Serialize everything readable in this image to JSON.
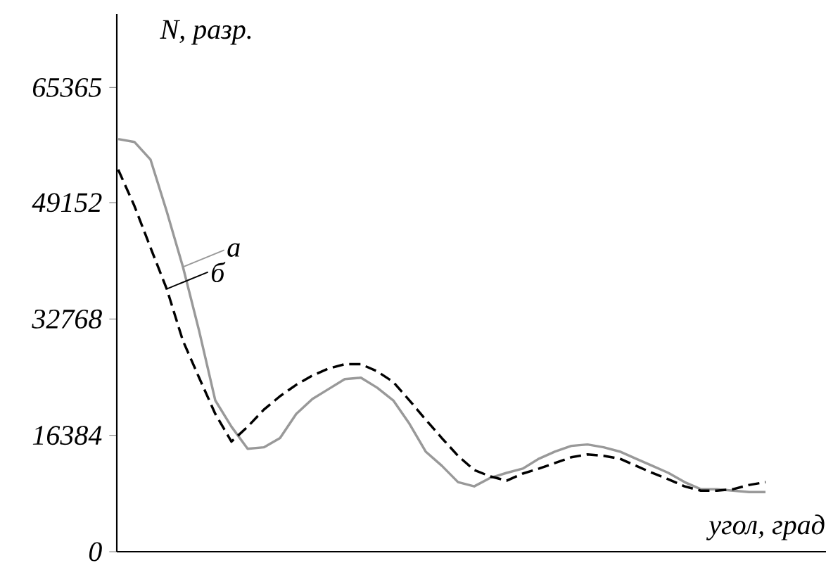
{
  "chart_data": {
    "type": "line",
    "xlabel": "угол, град",
    "ylabel": "N, разр.",
    "categories": [
      null,
      null,
      null,
      null,
      null,
      null,
      null,
      null,
      null,
      null,
      null,
      null,
      null,
      null,
      null,
      null,
      null,
      null,
      null,
      null,
      null,
      null,
      null,
      null,
      null,
      null,
      null,
      null,
      null,
      null,
      null,
      null,
      null,
      null,
      null,
      null,
      null,
      null,
      null,
      null,
      null
    ],
    "legend": "left",
    "ylim": [
      0,
      75700
    ],
    "yticks": [
      0,
      16384,
      32768,
      49152,
      65365
    ],
    "series": [
      {
        "name": "а",
        "color": "#999999",
        "line_style": "solid",
        "values": [
          58100,
          57700,
          55200,
          47900,
          40100,
          31100,
          21300,
          17600,
          14500,
          14700,
          16000,
          19400,
          21500,
          22900,
          24300,
          24500,
          23100,
          21300,
          18000,
          14100,
          12100,
          9800,
          9200,
          10400,
          11100,
          11700,
          13100,
          14100,
          14900,
          15100,
          14700,
          14100,
          13100,
          12100,
          11100,
          9800,
          8800,
          8800,
          8600,
          8400,
          8400
        ]
      },
      {
        "name": "б",
        "color": "#000000",
        "line_style": "dashed",
        "values": [
          53800,
          48700,
          42800,
          37000,
          29700,
          24500,
          19400,
          15500,
          17600,
          20000,
          21900,
          23500,
          24800,
          25800,
          26400,
          26400,
          25400,
          23900,
          21300,
          18600,
          16000,
          13500,
          11500,
          10600,
          10000,
          11000,
          11700,
          12500,
          13300,
          13700,
          13500,
          13100,
          12100,
          11100,
          10200,
          9200,
          8600,
          8600,
          8800,
          9400,
          9800
        ]
      }
    ]
  }
}
